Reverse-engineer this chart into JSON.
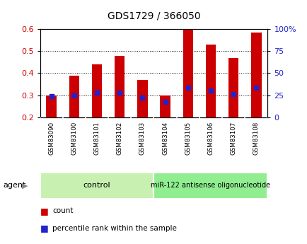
{
  "title": "GDS1729 / 366050",
  "samples": [
    "GSM83090",
    "GSM83100",
    "GSM83101",
    "GSM83102",
    "GSM83103",
    "GSM83104",
    "GSM83105",
    "GSM83106",
    "GSM83107",
    "GSM83108"
  ],
  "bar_values": [
    0.3,
    0.39,
    0.44,
    0.48,
    0.37,
    0.3,
    0.6,
    0.53,
    0.47,
    0.585
  ],
  "blue_dot_values": [
    0.295,
    0.3,
    0.31,
    0.31,
    0.29,
    0.27,
    0.335,
    0.32,
    0.305,
    0.335
  ],
  "bar_bottom": 0.2,
  "ylim": [
    0.2,
    0.6
  ],
  "yticks_left": [
    0.2,
    0.3,
    0.4,
    0.5,
    0.6
  ],
  "yticks_right": [
    0,
    25,
    50,
    75,
    100
  ],
  "groups": [
    {
      "label": "control",
      "start": 0,
      "end": 4,
      "color": "#c8f0b0"
    },
    {
      "label": "miR-122 antisense oligonucleotide",
      "start": 5,
      "end": 9,
      "color": "#90ee90"
    }
  ],
  "bar_color": "#cc0000",
  "dot_color": "#2222cc",
  "cell_bg": "#d0d0d0",
  "plot_bg": "#ffffff",
  "legend_count_label": "count",
  "legend_pct_label": "percentile rank within the sample",
  "agent_label": "agent",
  "title_fontsize": 10,
  "bar_width": 0.45
}
